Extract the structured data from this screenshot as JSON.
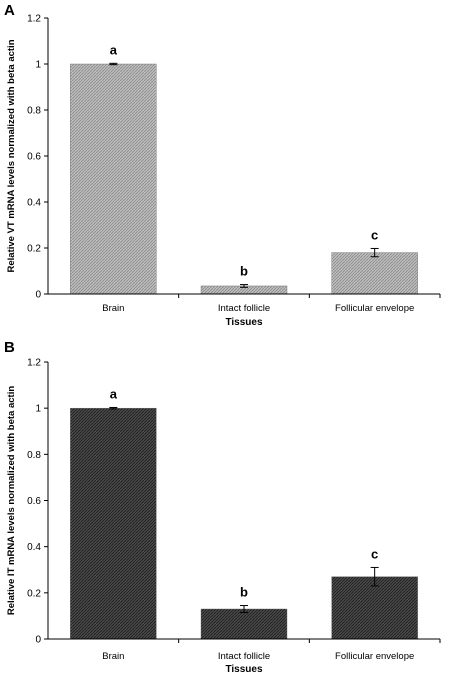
{
  "chart_data": [
    {
      "panel": "A",
      "type": "bar",
      "categories": [
        "Brain",
        "Intact follicle",
        "Follicular envelope"
      ],
      "values": [
        1.0,
        0.035,
        0.18
      ],
      "errors": [
        0.003,
        0.006,
        0.018
      ],
      "significance": [
        "a",
        "b",
        "c"
      ],
      "xlabel": "Tissues",
      "ylabel": "Relative VT mRNA levels normalized with beta actin",
      "ylim": [
        0,
        1.2
      ],
      "yticks": [
        "0",
        "0.2",
        "0.4",
        "0.6",
        "0.8",
        "1",
        "1.2"
      ],
      "bar_color": "#a8a8a8"
    },
    {
      "panel": "B",
      "type": "bar",
      "categories": [
        "Brain",
        "Intact follicle",
        "Follicular envelope"
      ],
      "values": [
        1.0,
        0.13,
        0.27
      ],
      "errors": [
        0.003,
        0.015,
        0.04
      ],
      "significance": [
        "a",
        "b",
        "c"
      ],
      "xlabel": "Tissues",
      "ylabel": "Relative IT mRNA levels normalized with beta actin",
      "ylim": [
        0,
        1.2
      ],
      "yticks": [
        "0",
        "0.2",
        "0.4",
        "0.6",
        "0.8",
        "1",
        "1.2"
      ],
      "bar_color": "#3c3c3c"
    }
  ]
}
